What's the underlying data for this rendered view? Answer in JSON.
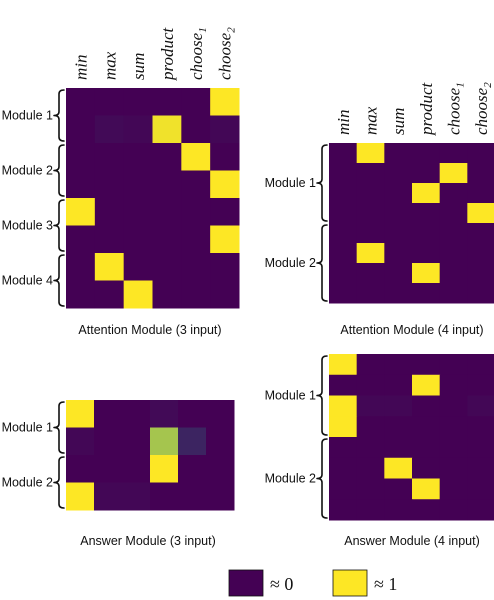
{
  "chart_data": [
    {
      "type": "heatmap",
      "caption": "Attention Module (3 input)",
      "columns": [
        "min",
        "max",
        "sum",
        "product",
        "choose1",
        "choose2"
      ],
      "groups": [
        {
          "label": "Module 1",
          "rows": [
            0,
            1
          ]
        },
        {
          "label": "Module 2",
          "rows": [
            2,
            3
          ]
        },
        {
          "label": "Module 3",
          "rows": [
            4,
            5
          ]
        },
        {
          "label": "Module 4",
          "rows": [
            6,
            7
          ]
        }
      ],
      "values": [
        [
          0,
          0,
          0,
          0,
          0,
          1
        ],
        [
          0,
          0.03,
          0.02,
          0.97,
          0,
          0.02
        ],
        [
          0,
          0,
          0,
          0,
          1,
          0
        ],
        [
          0,
          0,
          0,
          0,
          0,
          1
        ],
        [
          1,
          0,
          0,
          0,
          0,
          0
        ],
        [
          0,
          0,
          0,
          0,
          0,
          1
        ],
        [
          0,
          1,
          0,
          0,
          0,
          0
        ],
        [
          0,
          0,
          1,
          0,
          0,
          0
        ]
      ]
    },
    {
      "type": "heatmap",
      "caption": "Attention Module (4 input)",
      "columns": [
        "min",
        "max",
        "sum",
        "product",
        "choose1",
        "choose2"
      ],
      "groups": [
        {
          "label": "Module 1",
          "rows": [
            0,
            1,
            2,
            3
          ]
        },
        {
          "label": "Module 2",
          "rows": [
            4,
            5,
            6,
            7
          ]
        }
      ],
      "values": [
        [
          0,
          1,
          0,
          0,
          0,
          0
        ],
        [
          0,
          0,
          0,
          0,
          1,
          0
        ],
        [
          0,
          0,
          0,
          1,
          0,
          0
        ],
        [
          0,
          0,
          0,
          0,
          0,
          1
        ],
        [
          0,
          0,
          0,
          0,
          0,
          0
        ],
        [
          0,
          1,
          0,
          0,
          0,
          0
        ],
        [
          0,
          0,
          0,
          1,
          0,
          0
        ],
        [
          0,
          0,
          0,
          0,
          0,
          0
        ]
      ]
    },
    {
      "type": "heatmap",
      "caption": "Answer Module (3 input)",
      "columns": [
        "min",
        "max",
        "sum",
        "product",
        "choose1",
        "choose2"
      ],
      "groups": [
        {
          "label": "Module 1",
          "rows": [
            0,
            1
          ]
        },
        {
          "label": "Module 2",
          "rows": [
            2,
            3
          ]
        }
      ],
      "values": [
        [
          1,
          0,
          0,
          0.03,
          0,
          0
        ],
        [
          0.02,
          0,
          0,
          0.8,
          0.12,
          0
        ],
        [
          0,
          0,
          0,
          1,
          0,
          0
        ],
        [
          1,
          0.02,
          0.02,
          0,
          0,
          0
        ]
      ]
    },
    {
      "type": "heatmap",
      "caption": "Answer Module (4 input)",
      "columns": [
        "min",
        "max",
        "sum",
        "product",
        "choose1",
        "choose2"
      ],
      "groups": [
        {
          "label": "Module 1",
          "rows": [
            0,
            1,
            2,
            3
          ]
        },
        {
          "label": "Module 2",
          "rows": [
            4,
            5,
            6,
            7
          ]
        }
      ],
      "values": [
        [
          1,
          0,
          0,
          0,
          0,
          0
        ],
        [
          0,
          0,
          0,
          1,
          0,
          0
        ],
        [
          1,
          0.02,
          0.02,
          0,
          0,
          0.02
        ],
        [
          1,
          0,
          0,
          0,
          0,
          0
        ],
        [
          0,
          0,
          0,
          0,
          0,
          0
        ],
        [
          0,
          0,
          1,
          0,
          0,
          0
        ],
        [
          0,
          0,
          0,
          1,
          0,
          0
        ],
        [
          0,
          0,
          0,
          0,
          0,
          0
        ]
      ]
    }
  ],
  "colormap": {
    "low": "#440154",
    "mid": "#21918c",
    "high": "#fde725"
  },
  "legend": [
    {
      "color": "#440154",
      "label": "≈ 0"
    },
    {
      "color": "#fde725",
      "label": "≈ 1"
    }
  ]
}
